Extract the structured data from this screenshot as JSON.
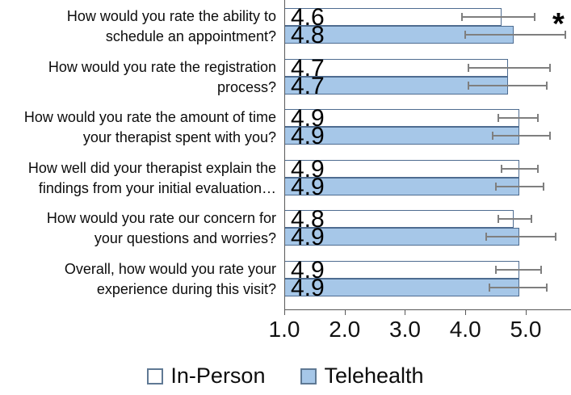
{
  "chart_data": {
    "type": "bar",
    "orientation": "horizontal",
    "title": "",
    "xlabel": "",
    "ylabel": "",
    "categories": [
      {
        "line1": "How would you rate the ability to",
        "line2": "schedule an appointment?"
      },
      {
        "line1": "How would you rate the registration",
        "line2": "process?"
      },
      {
        "line1": "How would you rate the amount of time",
        "line2": "your therapist spent with you?"
      },
      {
        "line1": "How well did your therapist explain the",
        "line2": "findings from your initial evaluation…"
      },
      {
        "line1": "How would you rate our concern for",
        "line2": "your questions and worries?"
      },
      {
        "line1": "Overall, how would you rate your",
        "line2": "experience during this visit?"
      }
    ],
    "series": [
      {
        "name": "In-Person",
        "fill": "#FFFFFF",
        "border": "#4E6C90",
        "values": [
          4.6,
          4.7,
          4.9,
          4.9,
          4.8,
          4.9
        ],
        "value_labels": [
          "4.6",
          "4.7",
          "4.9",
          "4.9",
          "4.8",
          "4.9"
        ],
        "error_low": [
          3.95,
          4.05,
          4.55,
          4.6,
          4.55,
          4.5
        ],
        "error_high": [
          5.15,
          5.4,
          5.2,
          5.2,
          5.1,
          5.25
        ]
      },
      {
        "name": "Telehealth",
        "fill": "#A6C7E8",
        "border": "#4E6C90",
        "values": [
          4.8,
          4.7,
          4.9,
          4.9,
          4.9,
          4.9
        ],
        "value_labels": [
          "4.8",
          "4.7",
          "4.9",
          "4.9",
          "4.9",
          "4.9"
        ],
        "error_low": [
          4.0,
          4.05,
          4.45,
          4.5,
          4.35,
          4.4
        ],
        "error_high": [
          5.65,
          5.35,
          5.4,
          5.3,
          5.5,
          5.35
        ]
      }
    ],
    "x_ticks": [
      "1.0",
      "2.0",
      "3.0",
      "4.0",
      "5.0"
    ],
    "x_tick_values": [
      1.0,
      2.0,
      3.0,
      4.0,
      5.0
    ],
    "xlim": [
      1.0,
      5.75
    ],
    "grid": false,
    "legend_position": "bottom",
    "significance": {
      "group_index": 0,
      "marker": "*"
    },
    "colors": {
      "error_bar": "#7F7F7F",
      "axis": "#595959",
      "text": "#0c0c0c"
    }
  }
}
